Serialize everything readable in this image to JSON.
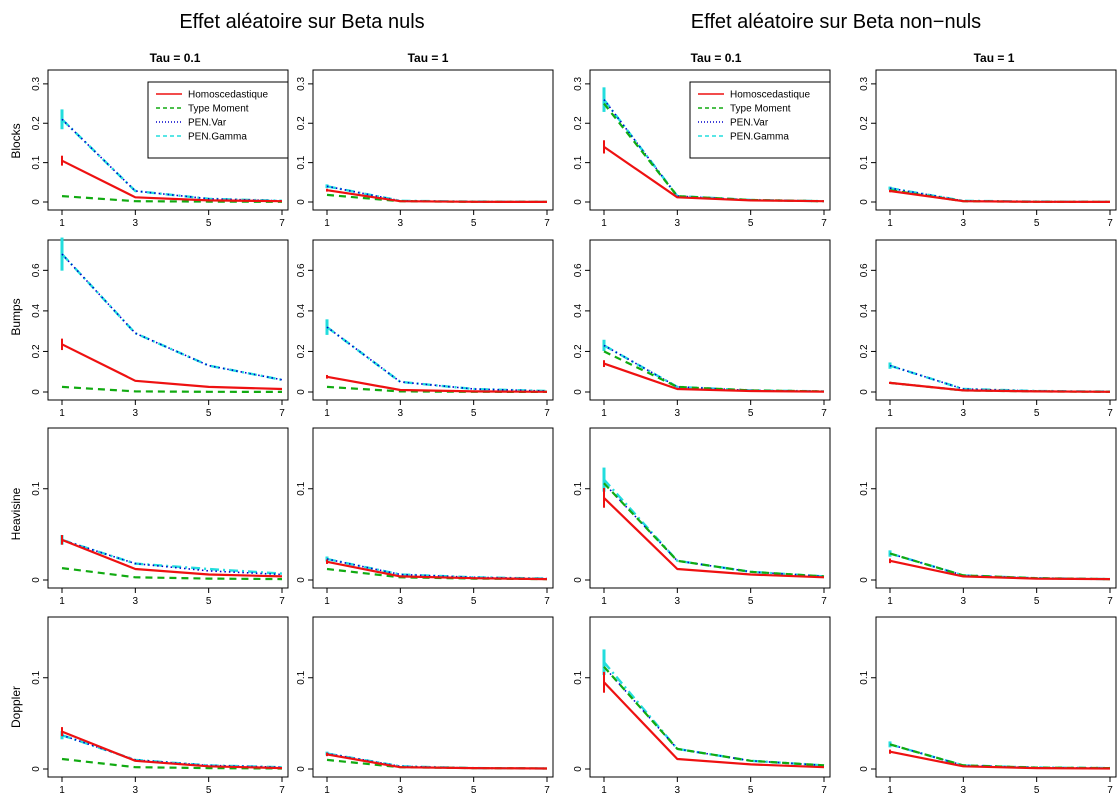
{
  "titles": {
    "left_super_title": "Effet aléatoire sur Beta nuls",
    "right_super_title": "Effet aléatoire sur Beta non−nuls",
    "columns": [
      "Tau = 0.1",
      "Tau = 1",
      "Tau = 0.1",
      "Tau = 1"
    ],
    "rows": [
      "Blocks",
      "Bumps",
      "Heavisine",
      "Doppler"
    ]
  },
  "legend": {
    "entries": [
      "Homoscedastique",
      "Type Moment",
      "PEN.Var",
      "PEN.Gamma"
    ],
    "placement": "top-right of first panel in each group"
  },
  "colors": {
    "Homoscedastique": "#ee1111",
    "Type Moment": "#11aa11",
    "PEN.Var": "#0000cc",
    "PEN.Gamma": "#22dddd"
  },
  "x_ticks": [
    1,
    3,
    5,
    7
  ],
  "row_yaxes": [
    {
      "ylim": [
        0,
        0.32
      ],
      "ticks": [
        0,
        0.1,
        0.2,
        0.3
      ],
      "labels": [
        "0",
        "0.1",
        "0.2",
        "0.3"
      ]
    },
    {
      "ylim": [
        0,
        0.72
      ],
      "ticks": [
        0,
        0.2,
        0.4,
        0.6
      ],
      "labels": [
        "0",
        "0.2",
        "0.4",
        "0.6"
      ]
    },
    {
      "ylim": [
        0,
        0.16
      ],
      "ticks": [
        0,
        0.1
      ],
      "labels": [
        "0",
        "0.1"
      ]
    },
    {
      "ylim": [
        0,
        0.16
      ],
      "ticks": [
        0,
        0.1
      ],
      "labels": [
        "0",
        "0.1"
      ]
    }
  ],
  "chart_data": [
    {
      "type": "line",
      "row": "Blocks",
      "column": "Tau = 0.1",
      "group": "Effet aléatoire sur Beta nuls",
      "x": [
        1,
        3,
        5,
        7
      ],
      "ylim": [
        0,
        0.32
      ],
      "series": [
        {
          "name": "Homoscedastique",
          "values": [
            0.105,
            0.012,
            0.004,
            0.002
          ]
        },
        {
          "name": "Type Moment",
          "values": [
            0.015,
            0.002,
            0.001,
            0.0005
          ]
        },
        {
          "name": "PEN.Var",
          "values": [
            0.21,
            0.028,
            0.008,
            0.003
          ]
        },
        {
          "name": "PEN.Gamma",
          "values": [
            0.21,
            0.028,
            0.008,
            0.003
          ]
        }
      ]
    },
    {
      "type": "line",
      "row": "Blocks",
      "column": "Tau = 1",
      "group": "Effet aléatoire sur Beta nuls",
      "x": [
        1,
        3,
        5,
        7
      ],
      "ylim": [
        0,
        0.32
      ],
      "series": [
        {
          "name": "Homoscedastique",
          "values": [
            0.03,
            0.002,
            0.0005,
            0.0002
          ]
        },
        {
          "name": "Type Moment",
          "values": [
            0.018,
            0.002,
            0.0005,
            0.0002
          ]
        },
        {
          "name": "PEN.Var",
          "values": [
            0.04,
            0.003,
            0.001,
            0.0005
          ]
        },
        {
          "name": "PEN.Gamma",
          "values": [
            0.04,
            0.003,
            0.001,
            0.0005
          ]
        }
      ]
    },
    {
      "type": "line",
      "row": "Blocks",
      "column": "Tau = 0.1",
      "group": "Effet aléatoire sur Beta non−nuls",
      "x": [
        1,
        3,
        5,
        7
      ],
      "ylim": [
        0,
        0.32
      ],
      "series": [
        {
          "name": "Homoscedastique",
          "values": [
            0.14,
            0.012,
            0.004,
            0.002
          ]
        },
        {
          "name": "Type Moment",
          "values": [
            0.25,
            0.015,
            0.005,
            0.002
          ]
        },
        {
          "name": "PEN.Var",
          "values": [
            0.26,
            0.015,
            0.005,
            0.002
          ]
        },
        {
          "name": "PEN.Gamma",
          "values": [
            0.26,
            0.015,
            0.005,
            0.002
          ]
        }
      ]
    },
    {
      "type": "line",
      "row": "Blocks",
      "column": "Tau = 1",
      "group": "Effet aléatoire sur Beta non−nuls",
      "x": [
        1,
        3,
        5,
        7
      ],
      "ylim": [
        0,
        0.32
      ],
      "series": [
        {
          "name": "Homoscedastique",
          "values": [
            0.028,
            0.002,
            0.0005,
            0.0002
          ]
        },
        {
          "name": "Type Moment",
          "values": [
            0.03,
            0.002,
            0.0005,
            0.0002
          ]
        },
        {
          "name": "PEN.Var",
          "values": [
            0.035,
            0.003,
            0.001,
            0.0005
          ]
        },
        {
          "name": "PEN.Gamma",
          "values": [
            0.035,
            0.003,
            0.001,
            0.0005
          ]
        }
      ]
    },
    {
      "type": "line",
      "row": "Bumps",
      "column": "Tau = 0.1",
      "group": "Effet aléatoire sur Beta nuls",
      "x": [
        1,
        3,
        5,
        7
      ],
      "ylim": [
        0,
        0.72
      ],
      "series": [
        {
          "name": "Homoscedastique",
          "values": [
            0.235,
            0.055,
            0.025,
            0.015
          ]
        },
        {
          "name": "Type Moment",
          "values": [
            0.025,
            0.003,
            0.001,
            0.0005
          ]
        },
        {
          "name": "PEN.Var",
          "values": [
            0.68,
            0.29,
            0.13,
            0.06
          ]
        },
        {
          "name": "PEN.Gamma",
          "values": [
            0.68,
            0.29,
            0.13,
            0.06
          ]
        }
      ]
    },
    {
      "type": "line",
      "row": "Bumps",
      "column": "Tau = 1",
      "group": "Effet aléatoire sur Beta nuls",
      "x": [
        1,
        3,
        5,
        7
      ],
      "ylim": [
        0,
        0.72
      ],
      "series": [
        {
          "name": "Homoscedastique",
          "values": [
            0.075,
            0.01,
            0.003,
            0.001
          ]
        },
        {
          "name": "Type Moment",
          "values": [
            0.025,
            0.003,
            0.001,
            0.0005
          ]
        },
        {
          "name": "PEN.Var",
          "values": [
            0.32,
            0.05,
            0.015,
            0.005
          ]
        },
        {
          "name": "PEN.Gamma",
          "values": [
            0.32,
            0.05,
            0.015,
            0.005
          ]
        }
      ]
    },
    {
      "type": "line",
      "row": "Bumps",
      "column": "Tau = 0.1",
      "group": "Effet aléatoire sur Beta non−nuls",
      "x": [
        1,
        3,
        5,
        7
      ],
      "ylim": [
        0,
        0.72
      ],
      "series": [
        {
          "name": "Homoscedastique",
          "values": [
            0.14,
            0.015,
            0.005,
            0.002
          ]
        },
        {
          "name": "Type Moment",
          "values": [
            0.2,
            0.025,
            0.008,
            0.003
          ]
        },
        {
          "name": "PEN.Var",
          "values": [
            0.23,
            0.025,
            0.008,
            0.003
          ]
        },
        {
          "name": "PEN.Gamma",
          "values": [
            0.23,
            0.025,
            0.008,
            0.003
          ]
        }
      ]
    },
    {
      "type": "line",
      "row": "Bumps",
      "column": "Tau = 1",
      "group": "Effet aléatoire sur Beta non−nuls",
      "x": [
        1,
        3,
        5,
        7
      ],
      "ylim": [
        0,
        0.72
      ],
      "series": [
        {
          "name": "Homoscedastique",
          "values": [
            0.045,
            0.008,
            0.003,
            0.001
          ]
        },
        {
          "name": "Type Moment",
          "values": [
            0.045,
            0.008,
            0.003,
            0.001
          ]
        },
        {
          "name": "PEN.Var",
          "values": [
            0.13,
            0.015,
            0.005,
            0.002
          ]
        },
        {
          "name": "PEN.Gamma",
          "values": [
            0.13,
            0.015,
            0.005,
            0.002
          ]
        }
      ]
    },
    {
      "type": "line",
      "row": "Heavisine",
      "column": "Tau = 0.1",
      "group": "Effet aléatoire sur Beta nuls",
      "x": [
        1,
        3,
        5,
        7
      ],
      "ylim": [
        0,
        0.16
      ],
      "series": [
        {
          "name": "Homoscedastique",
          "values": [
            0.044,
            0.012,
            0.006,
            0.004
          ]
        },
        {
          "name": "Type Moment",
          "values": [
            0.013,
            0.003,
            0.0015,
            0.001
          ]
        },
        {
          "name": "PEN.Var",
          "values": [
            0.044,
            0.018,
            0.01,
            0.006
          ]
        },
        {
          "name": "PEN.Gamma",
          "values": [
            0.044,
            0.018,
            0.012,
            0.007
          ]
        }
      ]
    },
    {
      "type": "line",
      "row": "Heavisine",
      "column": "Tau = 1",
      "group": "Effet aléatoire sur Beta nuls",
      "x": [
        1,
        3,
        5,
        7
      ],
      "ylim": [
        0,
        0.16
      ],
      "series": [
        {
          "name": "Homoscedastique",
          "values": [
            0.02,
            0.004,
            0.002,
            0.001
          ]
        },
        {
          "name": "Type Moment",
          "values": [
            0.012,
            0.003,
            0.0015,
            0.001
          ]
        },
        {
          "name": "PEN.Var",
          "values": [
            0.023,
            0.006,
            0.003,
            0.0015
          ]
        },
        {
          "name": "PEN.Gamma",
          "values": [
            0.023,
            0.006,
            0.003,
            0.0015
          ]
        }
      ]
    },
    {
      "type": "line",
      "row": "Heavisine",
      "column": "Tau = 0.1",
      "group": "Effet aléatoire sur Beta non−nuls",
      "x": [
        1,
        3,
        5,
        7
      ],
      "ylim": [
        0,
        0.16
      ],
      "series": [
        {
          "name": "Homoscedastique",
          "values": [
            0.09,
            0.012,
            0.006,
            0.003
          ]
        },
        {
          "name": "Type Moment",
          "values": [
            0.106,
            0.021,
            0.009,
            0.004
          ]
        },
        {
          "name": "PEN.Var",
          "values": [
            0.106,
            0.021,
            0.009,
            0.004
          ]
        },
        {
          "name": "PEN.Gamma",
          "values": [
            0.11,
            0.021,
            0.009,
            0.004
          ]
        }
      ]
    },
    {
      "type": "line",
      "row": "Heavisine",
      "column": "Tau = 1",
      "group": "Effet aléatoire sur Beta non−nuls",
      "x": [
        1,
        3,
        5,
        7
      ],
      "ylim": [
        0,
        0.16
      ],
      "series": [
        {
          "name": "Homoscedastique",
          "values": [
            0.021,
            0.004,
            0.0015,
            0.001
          ]
        },
        {
          "name": "Type Moment",
          "values": [
            0.029,
            0.005,
            0.002,
            0.001
          ]
        },
        {
          "name": "PEN.Var",
          "values": [
            0.029,
            0.005,
            0.002,
            0.001
          ]
        },
        {
          "name": "PEN.Gamma",
          "values": [
            0.029,
            0.005,
            0.002,
            0.001
          ]
        }
      ]
    },
    {
      "type": "line",
      "row": "Doppler",
      "column": "Tau = 0.1",
      "group": "Effet aléatoire sur Beta nuls",
      "x": [
        1,
        3,
        5,
        7
      ],
      "ylim": [
        0,
        0.16
      ],
      "series": [
        {
          "name": "Homoscedastique",
          "values": [
            0.041,
            0.009,
            0.003,
            0.001
          ]
        },
        {
          "name": "Type Moment",
          "values": [
            0.011,
            0.002,
            0.001,
            0.0005
          ]
        },
        {
          "name": "PEN.Var",
          "values": [
            0.037,
            0.01,
            0.004,
            0.002
          ]
        },
        {
          "name": "PEN.Gamma",
          "values": [
            0.037,
            0.01,
            0.004,
            0.002
          ]
        }
      ]
    },
    {
      "type": "line",
      "row": "Doppler",
      "column": "Tau = 1",
      "group": "Effet aléatoire sur Beta nuls",
      "x": [
        1,
        3,
        5,
        7
      ],
      "ylim": [
        0,
        0.16
      ],
      "series": [
        {
          "name": "Homoscedastique",
          "values": [
            0.016,
            0.002,
            0.001,
            0.0005
          ]
        },
        {
          "name": "Type Moment",
          "values": [
            0.01,
            0.002,
            0.001,
            0.0005
          ]
        },
        {
          "name": "PEN.Var",
          "values": [
            0.017,
            0.003,
            0.001,
            0.0005
          ]
        },
        {
          "name": "PEN.Gamma",
          "values": [
            0.017,
            0.003,
            0.001,
            0.0005
          ]
        }
      ]
    },
    {
      "type": "line",
      "row": "Doppler",
      "column": "Tau = 0.1",
      "group": "Effet aléatoire sur Beta non−nuls",
      "x": [
        1,
        3,
        5,
        7
      ],
      "ylim": [
        0,
        0.16
      ],
      "series": [
        {
          "name": "Homoscedastique",
          "values": [
            0.095,
            0.011,
            0.005,
            0.002
          ]
        },
        {
          "name": "Type Moment",
          "values": [
            0.112,
            0.022,
            0.009,
            0.004
          ]
        },
        {
          "name": "PEN.Var",
          "values": [
            0.112,
            0.022,
            0.009,
            0.004
          ]
        },
        {
          "name": "PEN.Gamma",
          "values": [
            0.117,
            0.022,
            0.009,
            0.004
          ]
        }
      ]
    },
    {
      "type": "line",
      "row": "Doppler",
      "column": "Tau = 1",
      "group": "Effet aléatoire sur Beta non−nuls",
      "x": [
        1,
        3,
        5,
        7
      ],
      "ylim": [
        0,
        0.16
      ],
      "series": [
        {
          "name": "Homoscedastique",
          "values": [
            0.019,
            0.003,
            0.001,
            0.0005
          ]
        },
        {
          "name": "Type Moment",
          "values": [
            0.027,
            0.004,
            0.0015,
            0.001
          ]
        },
        {
          "name": "PEN.Var",
          "values": [
            0.027,
            0.004,
            0.0015,
            0.001
          ]
        },
        {
          "name": "PEN.Gamma",
          "values": [
            0.027,
            0.004,
            0.0015,
            0.001
          ]
        }
      ]
    }
  ]
}
